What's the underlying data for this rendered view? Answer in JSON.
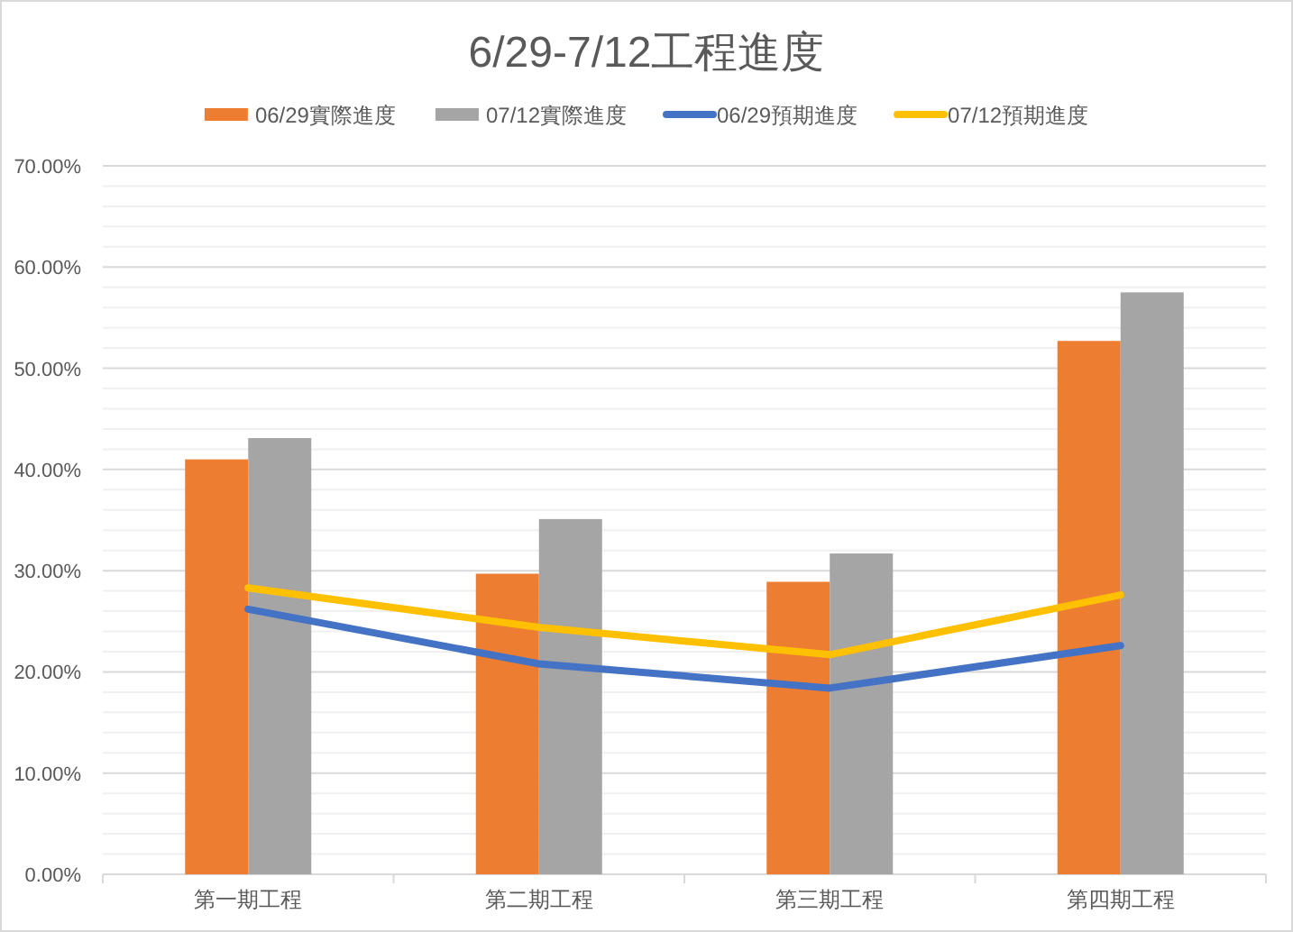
{
  "chart_data": {
    "type": "bar",
    "title": "6/29-7/12工程進度",
    "categories": [
      "第一期工程",
      "第二期工程",
      "第三期工程",
      "第四期工程"
    ],
    "series": [
      {
        "name": "06/29實際進度",
        "color": "#ed7d31",
        "values": [
          41.0,
          29.7,
          28.9,
          52.7
        ]
      },
      {
        "name": "07/12實際進度",
        "color": "#a5a5a5",
        "values": [
          43.1,
          35.1,
          31.7,
          57.5
        ]
      },
      {
        "name": "06/29預期進度",
        "color": "#4472c4",
        "type": "line",
        "values": [
          26.2,
          20.8,
          18.4,
          22.6
        ]
      },
      {
        "name": "07/12預期進度",
        "color": "#ffc000",
        "type": "line",
        "values": [
          28.3,
          24.4,
          21.7,
          27.6
        ]
      }
    ],
    "ylim": [
      0,
      70
    ],
    "yticks": [
      {
        "value": 0,
        "label": "0.00%"
      },
      {
        "value": 2,
        "label": null
      },
      {
        "value": 4,
        "label": null
      },
      {
        "value": 6,
        "label": null
      },
      {
        "value": 8,
        "label": null
      },
      {
        "value": 10,
        "label": "10.00%"
      },
      {
        "value": 12,
        "label": null
      },
      {
        "value": 14,
        "label": null
      },
      {
        "value": 16,
        "label": null
      },
      {
        "value": 18,
        "label": null
      },
      {
        "value": 20,
        "label": "20.00%"
      },
      {
        "value": 22,
        "label": null
      },
      {
        "value": 24,
        "label": null
      },
      {
        "value": 26,
        "label": null
      },
      {
        "value": 28,
        "label": null
      },
      {
        "value": 30,
        "label": "30.00%"
      },
      {
        "value": 32,
        "label": null
      },
      {
        "value": 34,
        "label": null
      },
      {
        "value": 36,
        "label": null
      },
      {
        "value": 38,
        "label": null
      },
      {
        "value": 40,
        "label": "40.00%"
      },
      {
        "value": 42,
        "label": null
      },
      {
        "value": 44,
        "label": null
      },
      {
        "value": 46,
        "label": null
      },
      {
        "value": 48,
        "label": null
      },
      {
        "value": 50,
        "label": "50.00%"
      },
      {
        "value": 52,
        "label": null
      },
      {
        "value": 54,
        "label": null
      },
      {
        "value": 56,
        "label": null
      },
      {
        "value": 58,
        "label": null
      },
      {
        "value": 60,
        "label": "60.00%"
      },
      {
        "value": 62,
        "label": null
      },
      {
        "value": 64,
        "label": null
      },
      {
        "value": 66,
        "label": null
      },
      {
        "value": 68,
        "label": null
      },
      {
        "value": 70,
        "label": "70.00%"
      }
    ],
    "grid": "y",
    "legend": "top",
    "marker": "none"
  }
}
